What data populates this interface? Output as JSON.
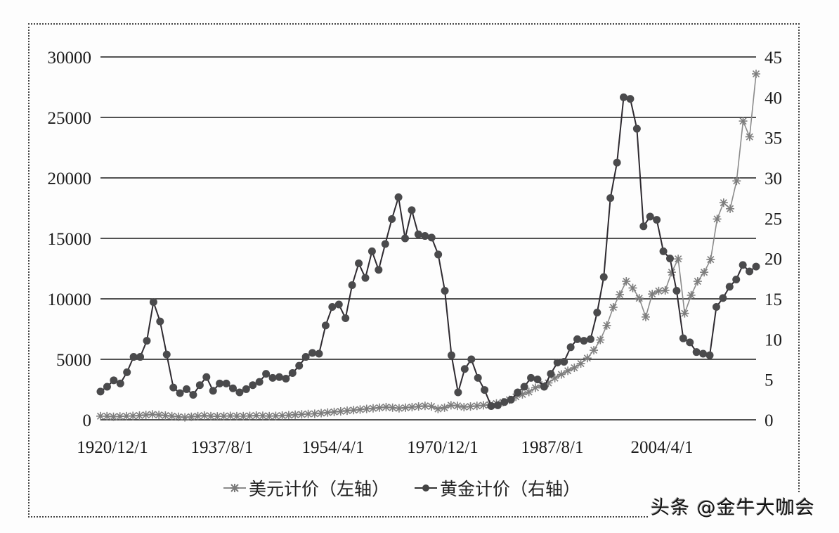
{
  "chart_data": {
    "type": "line",
    "title": "",
    "xlabel": "",
    "ylabel_left": "",
    "ylabel_right": "",
    "x_tick_labels": [
      "1920/12/1",
      "1937/8/1",
      "1954/4/1",
      "1970/12/1",
      "1987/8/1",
      "2004/4/1"
    ],
    "y_left": {
      "ticks": [
        0,
        5000,
        10000,
        15000,
        20000,
        25000,
        30000
      ],
      "range": [
        0,
        30000
      ]
    },
    "y_right": {
      "ticks": [
        0,
        5,
        10,
        15,
        20,
        25,
        30,
        35,
        40,
        45
      ],
      "range": [
        0,
        45
      ]
    },
    "grid": "horizontal",
    "legend_position": "bottom",
    "x_start_year": 1919,
    "x_end_year": 2019,
    "series": [
      {
        "name": "美元计价（左轴）",
        "axis": "left",
        "marker": "asterisk",
        "color": "#8a8a8a",
        "values": [
          300,
          300,
          250,
          280,
          300,
          320,
          350,
          400,
          450,
          400,
          350,
          300,
          250,
          200,
          250,
          300,
          350,
          300,
          280,
          300,
          320,
          300,
          300,
          320,
          350,
          330,
          300,
          320,
          350,
          380,
          420,
          450,
          480,
          500,
          550,
          600,
          650,
          700,
          750,
          800,
          850,
          900,
          950,
          1000,
          1050,
          1000,
          950,
          1000,
          1050,
          1100,
          1150,
          1100,
          900,
          1000,
          1200,
          1150,
          1050,
          1100,
          1150,
          1200,
          1250,
          1350,
          1450,
          1650,
          1900,
          2100,
          2300,
          2650,
          2850,
          3050,
          3450,
          3750,
          4050,
          4300,
          4650,
          5100,
          5750,
          6600,
          7800,
          9300,
          10350,
          11450,
          10900,
          10050,
          8500,
          10400,
          10650,
          10700,
          12200,
          13300,
          8800,
          10300,
          11450,
          12200,
          13250,
          16600,
          17950,
          17450,
          19750,
          24700,
          23400,
          28600
        ]
      },
      {
        "name": "黄金计价（右轴）",
        "axis": "right",
        "marker": "circle",
        "color": "#3a3a3a",
        "values": [
          3.5,
          4.1,
          4.9,
          4.5,
          5.9,
          7.8,
          7.8,
          9.8,
          14.6,
          12.2,
          8.1,
          4.0,
          3.3,
          3.8,
          3.1,
          4.3,
          5.3,
          3.6,
          4.5,
          4.5,
          3.9,
          3.4,
          3.8,
          4.3,
          4.7,
          5.7,
          5.2,
          5.3,
          5.1,
          5.8,
          6.7,
          7.8,
          8.3,
          8.2,
          11.7,
          14.0,
          14.3,
          12.6,
          16.7,
          19.4,
          17.6,
          20.9,
          18.6,
          21.8,
          24.9,
          27.6,
          22.5,
          26.0,
          23.0,
          22.8,
          22.6,
          20.5,
          16.0,
          8.0,
          3.4,
          6.3,
          7.5,
          5.2,
          3.7,
          1.7,
          1.8,
          2.2,
          2.5,
          3.4,
          4.1,
          5.2,
          5.0,
          4.1,
          5.7,
          7.1,
          7.2,
          9.0,
          10.0,
          9.8,
          10.0,
          13.3,
          17.7,
          27.5,
          31.9,
          40.0,
          39.8,
          36.1,
          24.0,
          25.2,
          24.8,
          20.9,
          20.0,
          16.0,
          10.1,
          9.6,
          8.4,
          8.2,
          8.0,
          14.0,
          15.1,
          16.5,
          17.4,
          19.2,
          18.4,
          19.0
        ]
      }
    ]
  },
  "legend": {
    "items": [
      {
        "label": "美元计价（左轴）",
        "marker": "asterisk-icon"
      },
      {
        "label": "黄金计价（右轴）",
        "marker": "circle-line-icon"
      }
    ]
  },
  "watermark": "头条 @金牛大咖会"
}
